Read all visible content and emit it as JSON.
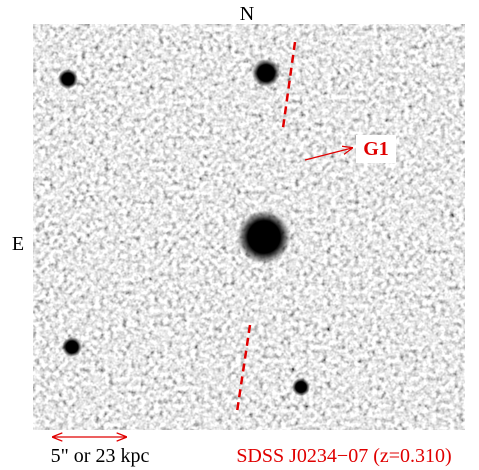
{
  "labels": {
    "north": "N",
    "east": "E",
    "object": "G1",
    "scale": "5\" or 23 kpc",
    "target": "SDSS J0234−07 (z=0.310)"
  }
}
